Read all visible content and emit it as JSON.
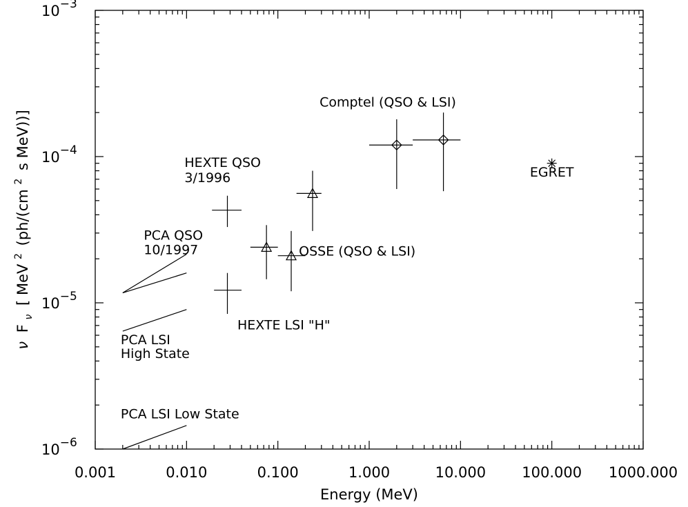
{
  "chart_data": {
    "type": "scatter",
    "xlabel": "Energy (MeV)",
    "ylabel": {
      "nu": "ν",
      "F": "F",
      "sub": "ν",
      "bracket_open": "[",
      "mev": "MeV",
      "sup2a": "2",
      "mid": "(ph/(cm",
      "sup2b": "2",
      "tail": "s MeV))]"
    },
    "x_scale": "log",
    "y_scale": "log",
    "xlim": [
      0.001,
      1000
    ],
    "ylim": [
      1e-06,
      0.001
    ],
    "grid": false,
    "x_ticks": [
      {
        "value": 0.001,
        "label": "0.001"
      },
      {
        "value": 0.01,
        "label": "0.010"
      },
      {
        "value": 0.1,
        "label": "0.100"
      },
      {
        "value": 1,
        "label": "1.000"
      },
      {
        "value": 10,
        "label": "10.000"
      },
      {
        "value": 100,
        "label": "100.000"
      },
      {
        "value": 1000,
        "label": "1000.000"
      }
    ],
    "y_ticks": [
      {
        "value": 1e-06,
        "base": "10",
        "exp": "−6"
      },
      {
        "value": 1e-05,
        "base": "10",
        "exp": "−5"
      },
      {
        "value": 0.0001,
        "base": "10",
        "exp": "−4"
      },
      {
        "value": 0.001,
        "base": "10",
        "exp": "−3"
      }
    ],
    "points": [
      {
        "x": 0.028,
        "y": 4.3e-05,
        "xerr": [
          0.019,
          0.04
        ],
        "yerr": [
          3.3e-05,
          5.4e-05
        ],
        "marker": "none"
      },
      {
        "x": 0.028,
        "y": 1.22e-05,
        "xerr": [
          0.02,
          0.04
        ],
        "yerr": [
          8.4e-06,
          1.6e-05
        ],
        "marker": "none"
      },
      {
        "x": 0.075,
        "y": 2.4e-05,
        "xerr": [
          0.05,
          0.1
        ],
        "yerr": [
          1.45e-05,
          3.4e-05
        ],
        "marker": "triangle"
      },
      {
        "x": 0.14,
        "y": 2.1e-05,
        "xerr": [
          0.1,
          0.2
        ],
        "yerr": [
          1.2e-05,
          3.1e-05
        ],
        "marker": "triangle"
      },
      {
        "x": 0.24,
        "y": 5.6e-05,
        "xerr": [
          0.16,
          0.3
        ],
        "yerr": [
          3.1e-05,
          8e-05
        ],
        "marker": "triangle"
      },
      {
        "x": 2.0,
        "y": 0.00012,
        "xerr": [
          1.0,
          3.0
        ],
        "yerr": [
          6e-05,
          0.00018
        ],
        "marker": "diamond"
      },
      {
        "x": 6.5,
        "y": 0.00013,
        "xerr": [
          3.0,
          10.0
        ],
        "yerr": [
          5.8e-05,
          0.0002
        ],
        "marker": "diamond"
      },
      {
        "x": 100,
        "y": 9e-05,
        "marker": "asterisk"
      }
    ],
    "lines": [
      {
        "x": [
          0.002,
          0.01
        ],
        "y": [
          1.17e-05,
          2.15e-05
        ]
      },
      {
        "x": [
          0.002,
          0.01
        ],
        "y": [
          1.17e-05,
          1.6e-05
        ]
      },
      {
        "x": [
          0.002,
          0.01
        ],
        "y": [
          6.4e-06,
          9e-06
        ]
      },
      {
        "x": [
          0.002,
          0.01
        ],
        "y": [
          1e-06,
          1.45e-06
        ]
      }
    ],
    "annotations": [
      {
        "text": "Comptel (QSO & LSI)",
        "x": 1.6,
        "y": 0.00022,
        "anchor": "middle"
      },
      {
        "text": "EGRET",
        "x": 100,
        "y": 7.3e-05,
        "anchor": "middle"
      },
      {
        "text": "HEXTE QSO",
        "x": 0.0095,
        "y": 8.5e-05,
        "anchor": "start"
      },
      {
        "text": "3/1996",
        "x": 0.0095,
        "y": 6.7e-05,
        "anchor": "start"
      },
      {
        "text": "OSSE (QSO & LSI)",
        "x": 0.17,
        "y": 2.1e-05,
        "anchor": "start"
      },
      {
        "text": "PCA QSO",
        "x": 0.0034,
        "y": 2.7e-05,
        "anchor": "start"
      },
      {
        "text": "10/1997",
        "x": 0.0034,
        "y": 2.15e-05,
        "anchor": "start"
      },
      {
        "text": "HEXTE LSI \"H\"",
        "x": 0.036,
        "y": 6.6e-06,
        "anchor": "start"
      },
      {
        "text": "PCA LSI",
        "x": 0.0019,
        "y": 5.2e-06,
        "anchor": "start"
      },
      {
        "text": "High State",
        "x": 0.0019,
        "y": 4.2e-06,
        "anchor": "start"
      },
      {
        "text": "PCA LSI Low State",
        "x": 0.0019,
        "y": 1.62e-06,
        "anchor": "start"
      }
    ]
  }
}
